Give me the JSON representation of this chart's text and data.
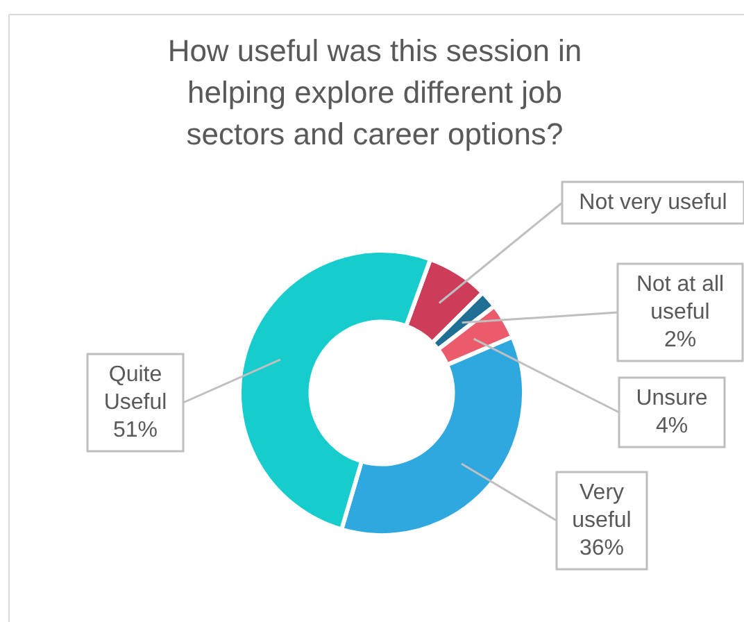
{
  "chart_data": {
    "type": "donut",
    "title": "How useful was this session in helping explore different job sectors and career options?",
    "categories": [
      "Not very useful",
      "Not at all useful",
      "Unsure",
      "Very useful",
      "Quite Useful"
    ],
    "values": [
      7,
      2,
      4,
      36,
      51
    ],
    "colors": [
      "#cd3c58",
      "#1f6f95",
      "#ec5b6b",
      "#2fa8e0",
      "#17cccc"
    ],
    "value_labels": [
      null,
      "2%",
      "4%",
      "36%",
      "51%"
    ]
  }
}
